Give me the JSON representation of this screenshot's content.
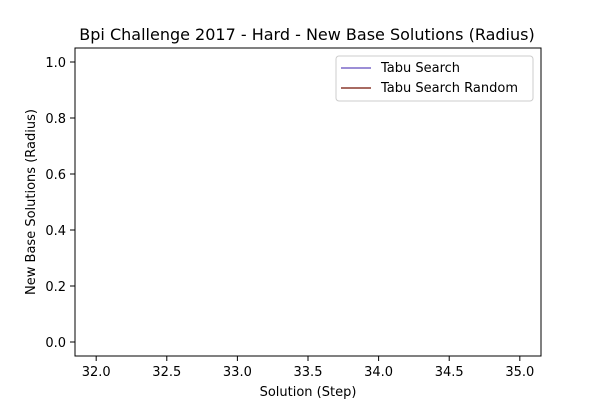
{
  "chart_data": {
    "type": "line",
    "title": "Bpi Challenge 2017 - Hard - New Base Solutions (Radius)",
    "xlabel": "Solution (Step)",
    "ylabel": "New Base Solutions (Radius)",
    "xlim": [
      31.85,
      35.15
    ],
    "ylim": [
      -0.05,
      1.05
    ],
    "xticks": [
      32.0,
      32.5,
      33.0,
      33.5,
      34.0,
      34.5,
      35.0
    ],
    "xtick_labels": [
      "32.0",
      "32.5",
      "33.0",
      "33.5",
      "34.0",
      "34.5",
      "35.0"
    ],
    "yticks": [
      0.0,
      0.2,
      0.4,
      0.6,
      0.8,
      1.0
    ],
    "ytick_labels": [
      "0.0",
      "0.2",
      "0.4",
      "0.6",
      "0.8",
      "1.0"
    ],
    "grid": false,
    "legend_position": "upper right",
    "series": [
      {
        "name": "Tabu Search",
        "color": "#7b68c9",
        "x": [],
        "y": []
      },
      {
        "name": "Tabu Search Random",
        "color": "#8b3a2e",
        "x": [],
        "y": []
      }
    ]
  }
}
